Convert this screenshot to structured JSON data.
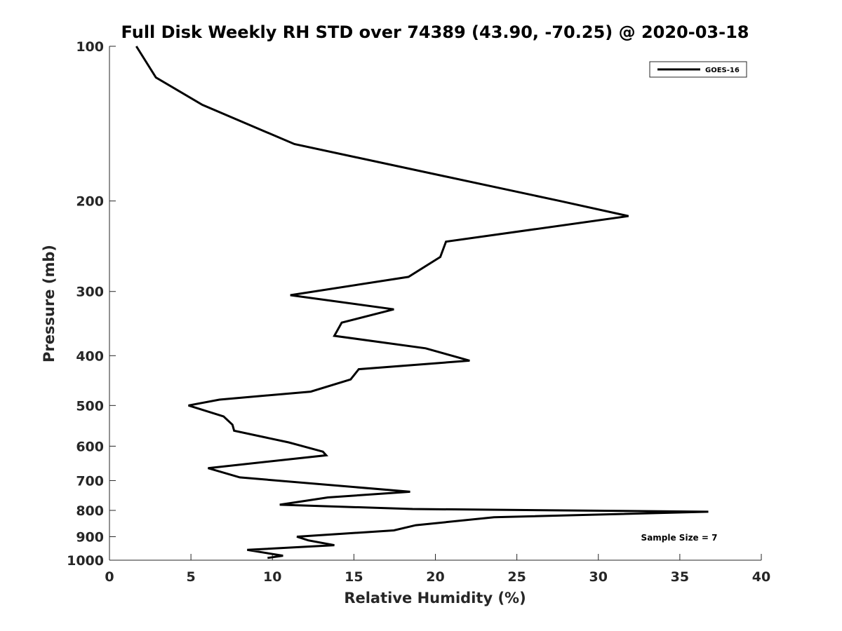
{
  "chart_data": {
    "type": "line",
    "title": "Full Disk Weekly RH STD over 74389 (43.90, -70.25) @ 2020-03-18",
    "xlabel": "Relative Humidity (%)",
    "ylabel": "Pressure (mb)",
    "xlim": [
      0,
      40
    ],
    "ylim": [
      100,
      1000
    ],
    "y_scale": "log",
    "y_reversed": true,
    "x_ticks": [
      0,
      5,
      10,
      15,
      20,
      25,
      30,
      35,
      40
    ],
    "x_tick_labels": [
      "0",
      "5",
      "10",
      "15",
      "20",
      "25",
      "30",
      "35",
      "40"
    ],
    "y_ticks": [
      100,
      200,
      300,
      400,
      500,
      600,
      700,
      800,
      900,
      1000
    ],
    "y_tick_labels": [
      "100",
      "200",
      "300",
      "400",
      "500",
      "600",
      "700",
      "800",
      "900",
      "1000"
    ],
    "grid": false,
    "legend_position": "top-right",
    "line_color": "#000000",
    "series": [
      {
        "name": "GOES-16",
        "x": [
          1.65,
          2.85,
          5.7,
          11.35,
          27.65,
          31.85,
          20.65,
          20.3,
          18.35,
          11.1,
          17.45,
          14.25,
          13.8,
          19.4,
          22.1,
          15.3,
          14.8,
          12.35,
          6.75,
          4.85,
          7.0,
          7.55,
          7.65,
          11.0,
          13.1,
          13.3,
          6.05,
          8.0,
          18.45,
          13.4,
          10.45,
          18.6,
          36.75,
          23.6,
          18.8,
          17.45,
          11.5,
          12.2,
          13.8,
          8.45,
          10.65,
          9.7
        ],
        "y": [
          100,
          115,
          130,
          155,
          200,
          214,
          240,
          257,
          281,
          305,
          325,
          345,
          366,
          387,
          409,
          425,
          445,
          470,
          487,
          500,
          525,
          545,
          560,
          590,
          615,
          625,
          662,
          690,
          736,
          755,
          780,
          795,
          805,
          825,
          855,
          875,
          900,
          915,
          935,
          955,
          980,
          990
        ]
      }
    ],
    "annotations": [
      "Sample Size = 7"
    ]
  }
}
